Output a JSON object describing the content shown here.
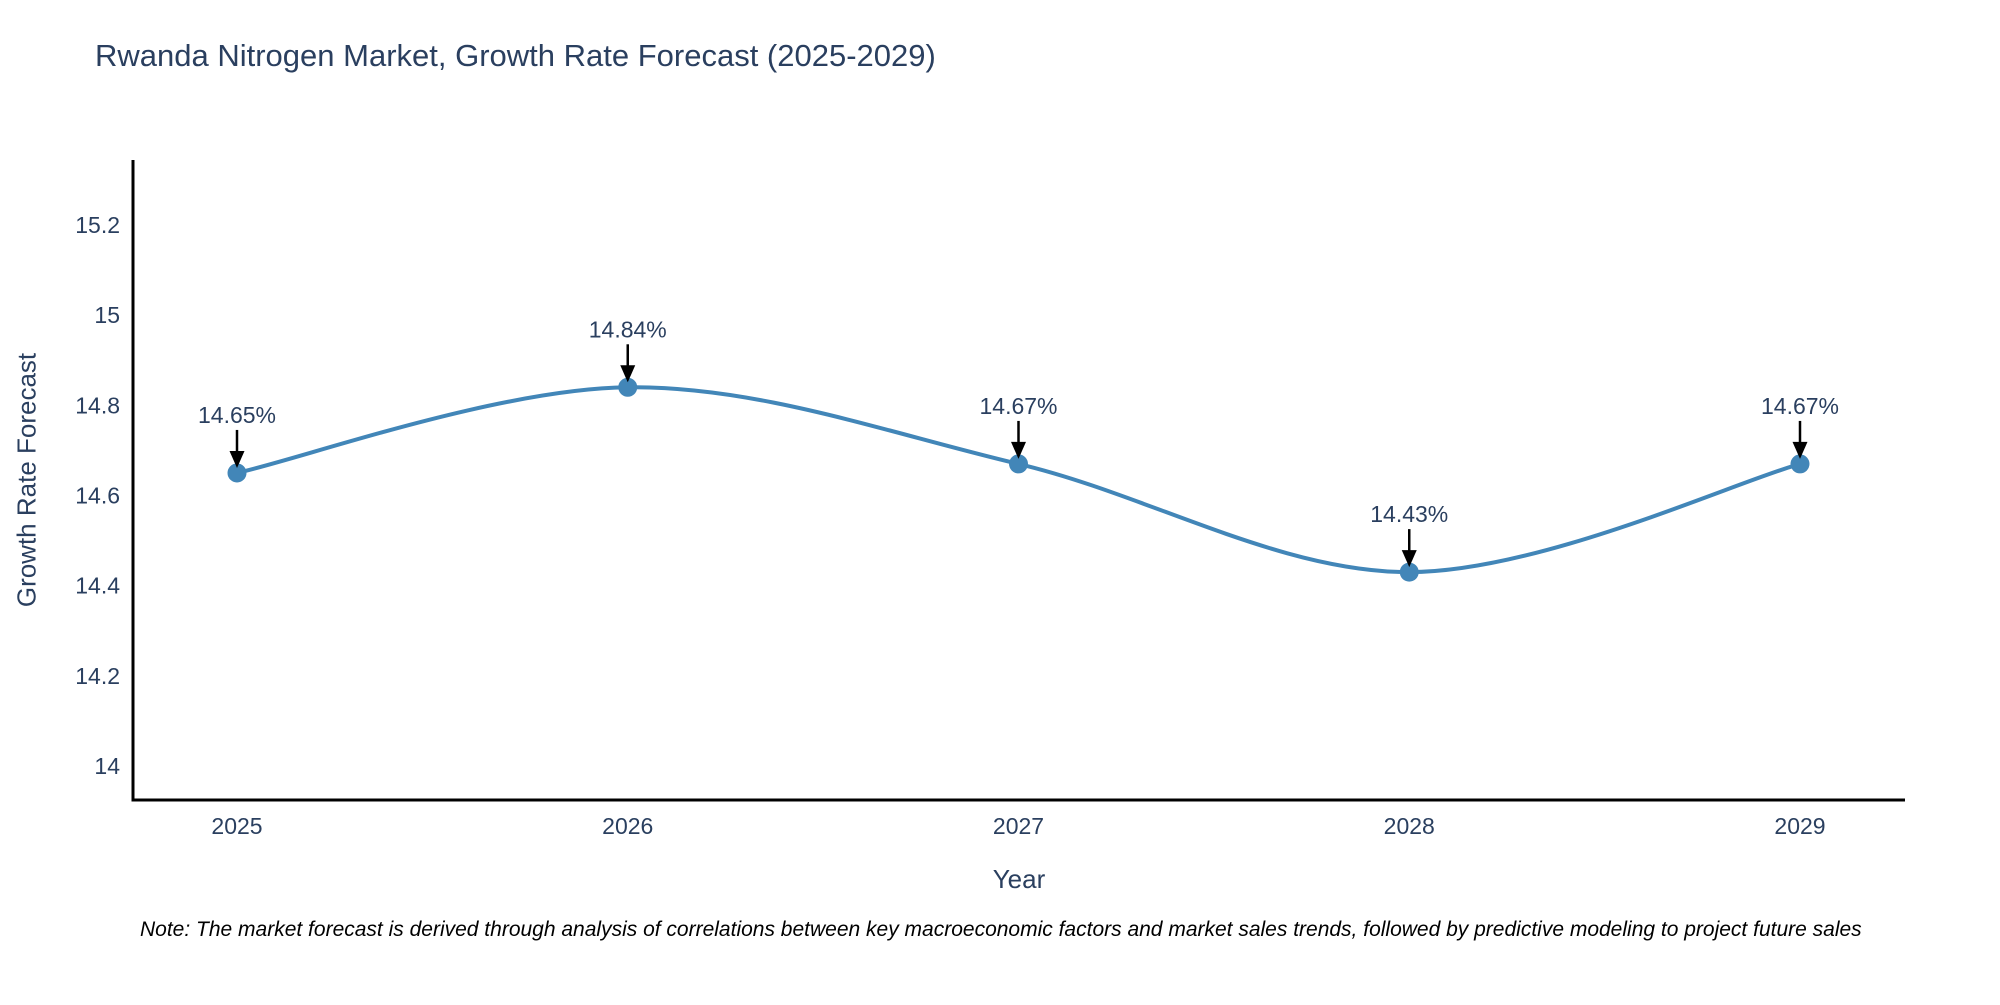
{
  "title": "Rwanda Nitrogen Market, Growth Rate Forecast (2025-2029)",
  "note": "Note: The market forecast is derived through analysis of correlations between key macroeconomic factors and market sales trends, followed by predictive modeling to project future sales",
  "chart_data": {
    "type": "line",
    "title": "Rwanda Nitrogen Market, Growth Rate Forecast (2025-2029)",
    "x": [
      2025,
      2026,
      2027,
      2028,
      2029
    ],
    "series": [
      {
        "name": "Growth Rate Forecast",
        "values": [
          14.65,
          14.84,
          14.67,
          14.43,
          14.67
        ]
      }
    ],
    "point_labels": [
      "14.65%",
      "14.84%",
      "14.67%",
      "14.43%",
      "14.67%"
    ],
    "xlabel": "Year",
    "ylabel": "Growth Rate Forecast",
    "xtick_labels": [
      "2025",
      "2026",
      "2027",
      "2028",
      "2029"
    ],
    "ytick_values": [
      14,
      14.2,
      14.4,
      14.6,
      14.8,
      15,
      15.2
    ],
    "ytick_labels": [
      "14",
      "14.2",
      "14.4",
      "14.6",
      "14.8",
      "15",
      "15.2"
    ],
    "ylim": [
      13.92,
      15.34
    ],
    "line_shape": "spline",
    "grid": false,
    "legend": "none",
    "colors": {
      "line": "#4286b8",
      "marker": "#4286b8",
      "axis": "#000000",
      "text": "#2a3f5f",
      "arrow": "#000000",
      "background": "#ffffff"
    }
  }
}
